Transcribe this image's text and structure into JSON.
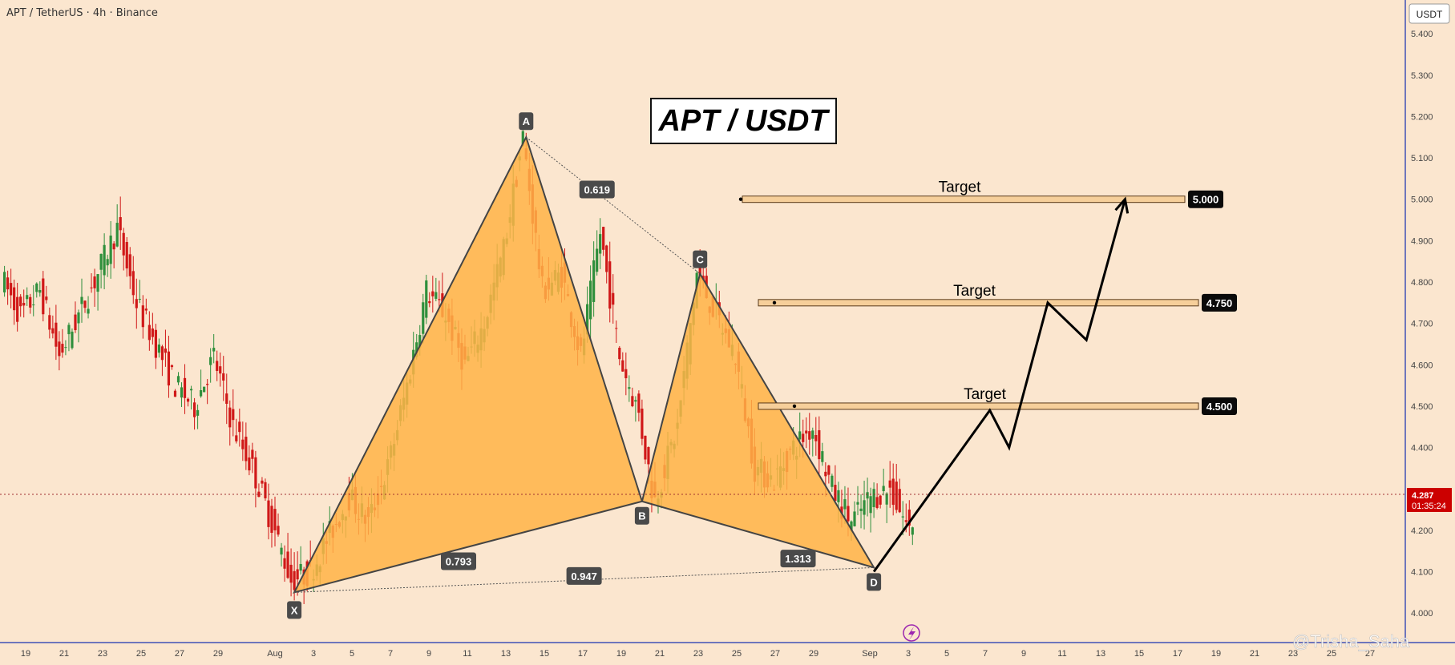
{
  "header": {
    "symbol_text": "APT / TetherUS · 4h · Binance",
    "currency_label": "USDT"
  },
  "title_box": {
    "text": "APT / USDT"
  },
  "watermark": {
    "text": "@Trisha_Saha"
  },
  "price_badge": {
    "price": "4.287",
    "countdown": "01:35:24"
  },
  "chart_data": {
    "type": "candlestick",
    "title": "APT / USDT",
    "symbol": "APT / TetherUS",
    "interval": "4h",
    "exchange": "Binance",
    "ylim": [
      3.96,
      5.47
    ],
    "y_ticks": [
      "5.400",
      "5.300",
      "5.200",
      "5.100",
      "5.000",
      "4.900",
      "4.800",
      "4.700",
      "4.600",
      "4.500",
      "4.400",
      "4.300",
      "4.200",
      "4.100",
      "4.000"
    ],
    "x_ticks": [
      "19",
      "21",
      "23",
      "25",
      "27",
      "29",
      "Aug",
      "3",
      "5",
      "7",
      "9",
      "11",
      "13",
      "15",
      "17",
      "19",
      "21",
      "23",
      "25",
      "27",
      "29",
      "Sep",
      "3",
      "5",
      "7",
      "9",
      "11",
      "13",
      "15",
      "17",
      "19",
      "21",
      "23",
      "25",
      "27"
    ],
    "current_price": 4.287,
    "pattern": {
      "name": "harmonic XABCD",
      "points": [
        {
          "label": "X",
          "date": "Aug 2",
          "price": 4.05
        },
        {
          "label": "A",
          "date": "Aug 14",
          "price": 5.15
        },
        {
          "label": "B",
          "date": "Aug 20",
          "price": 4.27
        },
        {
          "label": "C",
          "date": "Aug 23",
          "price": 4.82
        },
        {
          "label": "D",
          "date": "Sep 1",
          "price": 4.11
        }
      ],
      "ratios": [
        "0.619",
        "0.793",
        "1.313",
        "0.947"
      ]
    },
    "targets": [
      {
        "label": "Target",
        "value": "5.000",
        "price": 5.0
      },
      {
        "label": "Target",
        "value": "4.750",
        "price": 4.75
      },
      {
        "label": "Target",
        "value": "4.500",
        "price": 4.5
      }
    ],
    "projection_path": [
      {
        "date": "Sep 1",
        "price": 4.1
      },
      {
        "date": "Sep 7",
        "price": 4.49
      },
      {
        "date": "Sep 8",
        "price": 4.4
      },
      {
        "date": "Sep 10",
        "price": 4.75
      },
      {
        "date": "Sep 12",
        "price": 4.66
      },
      {
        "date": "Sep 14",
        "price": 5.0
      }
    ],
    "colors": {
      "background": "#fbe6cf",
      "bull": "#2f8f3c",
      "bear": "#d01818",
      "pattern_fill": "#ffb347",
      "target_zone": "#f6cf9a",
      "price_badge": "#cc0000"
    }
  }
}
